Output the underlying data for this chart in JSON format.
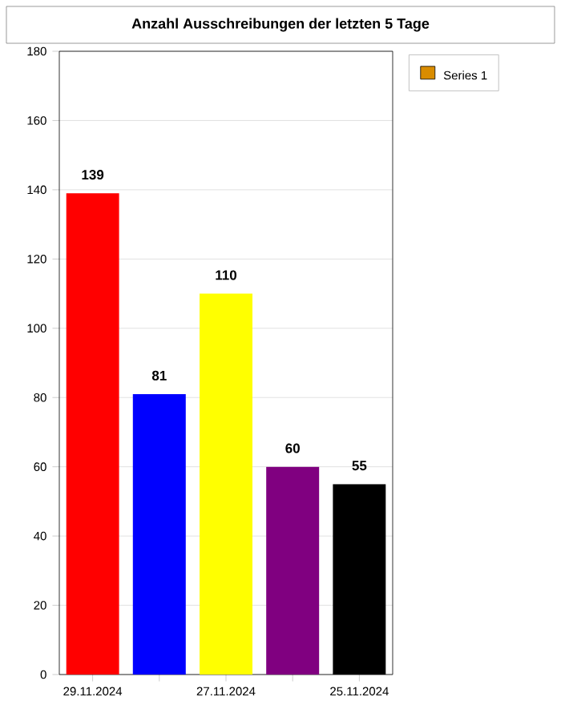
{
  "chart_data": {
    "type": "bar",
    "title": "Anzahl Ausschreibungen der letzten 5 Tage",
    "categories": [
      "29.11.2024",
      null,
      "27.11.2024",
      null,
      "25.11.2024"
    ],
    "series": [
      {
        "name": "Series 1",
        "color": "#d98c00",
        "colors": [
          "#ff0000",
          "#0000ff",
          "#ffff00",
          "#800080",
          "#000000"
        ],
        "values": [
          139,
          81,
          110,
          60,
          55
        ]
      }
    ],
    "ylim": [
      0,
      180
    ],
    "yticks": [
      0,
      20,
      40,
      60,
      80,
      100,
      120,
      140,
      160,
      180
    ],
    "grid": "y",
    "legend": "top right",
    "data_labels": true
  }
}
